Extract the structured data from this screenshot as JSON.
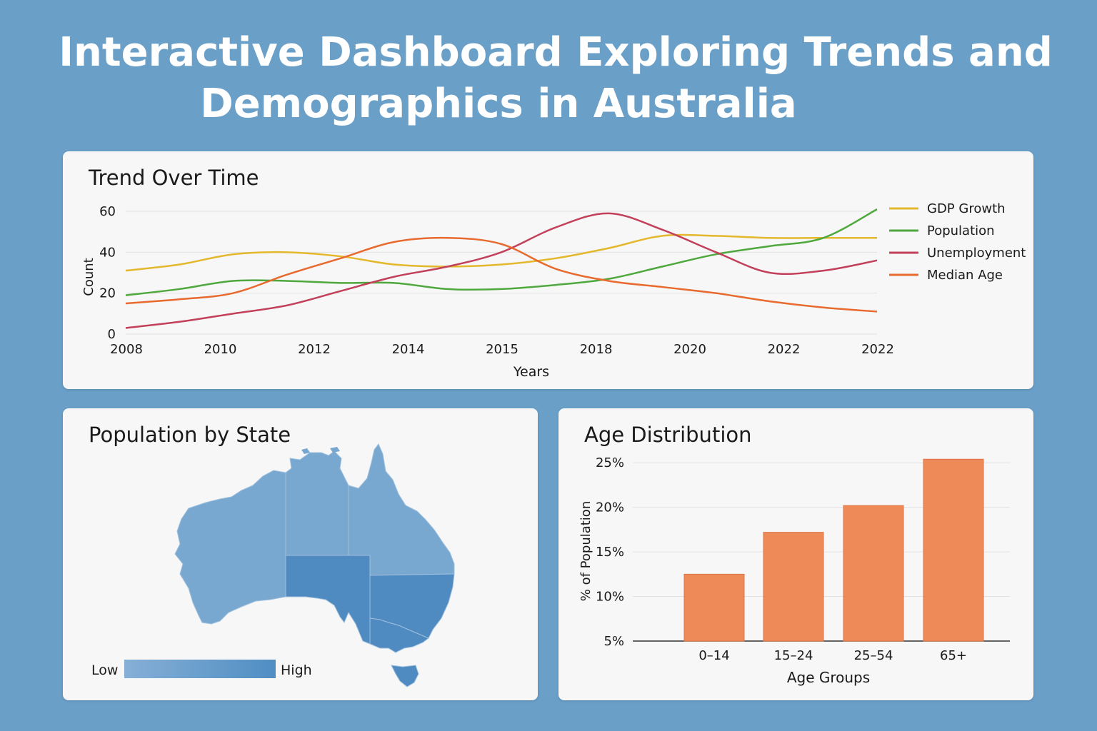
{
  "title": {
    "line1": "Interactive Dashboard Exploring Trends and",
    "line2": "Demographics in Australia"
  },
  "colors": {
    "background": "#6a9fc8",
    "gdp": "#e4b82c",
    "population": "#4fa83d",
    "unemployment": "#c2405a",
    "median_age": "#e86a2e",
    "bar": "#ee8a58",
    "map_low": "#78a8d0",
    "map_high": "#4f8ac0"
  },
  "trend": {
    "title": "Trend Over Time",
    "xlabel": "Years",
    "ylabel": "Count"
  },
  "map": {
    "title": "Population by State",
    "legend_low": "Low",
    "legend_high": "High",
    "states": [
      {
        "name": "WA",
        "level": "low"
      },
      {
        "name": "NT",
        "level": "low"
      },
      {
        "name": "QLD",
        "level": "low"
      },
      {
        "name": "SA",
        "level": "high"
      },
      {
        "name": "NSW",
        "level": "high"
      },
      {
        "name": "VIC",
        "level": "high"
      },
      {
        "name": "TAS",
        "level": "high"
      }
    ]
  },
  "age": {
    "title": "Age Distribution",
    "xlabel": "Age Groups",
    "ylabel": "% of Population"
  },
  "chart_data": [
    {
      "type": "line",
      "title": "Trend Over Time",
      "xlabel": "Years",
      "ylabel": "Count",
      "x_tick_labels": [
        "2008",
        "2010",
        "2012",
        "2014",
        "2015",
        "2018",
        "2020",
        "2022",
        "2022"
      ],
      "y_ticks": [
        0,
        20,
        40,
        60
      ],
      "ylim": [
        0,
        60
      ],
      "grid": true,
      "legend_position": "right",
      "series": [
        {
          "name": "GDP Growth",
          "color": "#e4b82c",
          "values": [
            31,
            34,
            39,
            40,
            38,
            34,
            33,
            34,
            37,
            42,
            48,
            48,
            47,
            47,
            47
          ]
        },
        {
          "name": "Population",
          "color": "#4fa83d",
          "values": [
            19,
            22,
            26,
            26,
            25,
            25,
            22,
            22,
            24,
            27,
            33,
            39,
            43,
            47,
            61
          ]
        },
        {
          "name": "Unemployment",
          "color": "#c2405a",
          "values": [
            3,
            6,
            10,
            14,
            21,
            28,
            33,
            40,
            52,
            59,
            51,
            40,
            30,
            31,
            36
          ]
        },
        {
          "name": "Median Age",
          "color": "#e86a2e",
          "values": [
            15,
            17,
            20,
            29,
            37,
            45,
            47,
            44,
            32,
            26,
            23,
            20,
            16,
            13,
            11
          ]
        }
      ]
    },
    {
      "type": "bar",
      "title": "Age Distribution",
      "xlabel": "Age Groups",
      "ylabel": "% of Population",
      "categories": [
        "0–14",
        "15–24",
        "25–54",
        "65+"
      ],
      "values": [
        12.5,
        17.2,
        20.2,
        25.4
      ],
      "y_ticks": [
        "5%",
        "10%",
        "15%",
        "20%",
        "25%"
      ],
      "ylim": [
        5,
        25.5
      ],
      "grid": true
    }
  ]
}
